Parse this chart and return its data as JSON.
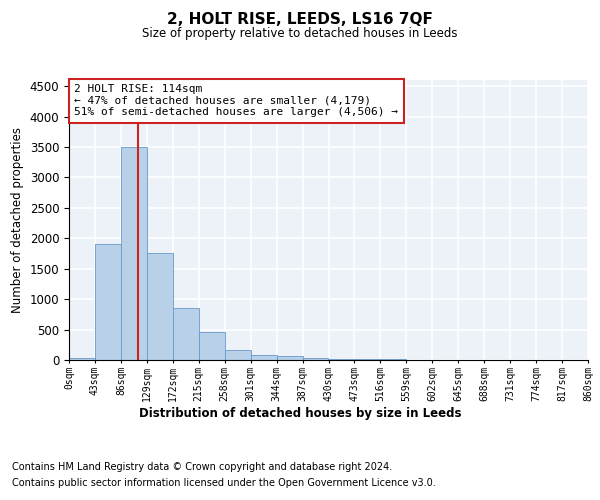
{
  "title": "2, HOLT RISE, LEEDS, LS16 7QF",
  "subtitle": "Size of property relative to detached houses in Leeds",
  "xlabel": "Distribution of detached houses by size in Leeds",
  "ylabel": "Number of detached properties",
  "bar_color": "#b8d0e8",
  "bar_edgecolor": "#6699cc",
  "property_line_x": 114,
  "property_line_color": "#cc2222",
  "annotation_line1": "2 HOLT RISE: 114sqm",
  "annotation_line2": "← 47% of detached houses are smaller (4,179)",
  "annotation_line3": "51% of semi-detached houses are larger (4,506) →",
  "annotation_box_color": "white",
  "annotation_box_edgecolor": "#cc2222",
  "bin_edges": [
    0,
    43,
    86,
    129,
    172,
    215,
    258,
    301,
    344,
    387,
    430,
    473,
    516,
    559,
    602,
    645,
    688,
    731,
    774,
    817,
    860
  ],
  "bar_heights": [
    40,
    1900,
    3500,
    1750,
    850,
    460,
    165,
    90,
    60,
    35,
    20,
    15,
    10,
    8,
    5,
    4,
    3,
    2,
    1,
    1
  ],
  "ylim": [
    0,
    4600
  ],
  "yticks": [
    0,
    500,
    1000,
    1500,
    2000,
    2500,
    3000,
    3500,
    4000,
    4500
  ],
  "footnote1": "Contains HM Land Registry data © Crown copyright and database right 2024.",
  "footnote2": "Contains public sector information licensed under the Open Government Licence v3.0.",
  "background_color": "#edf2f9",
  "grid_color": "white",
  "tick_labels": [
    "0sqm",
    "43sqm",
    "86sqm",
    "129sqm",
    "172sqm",
    "215sqm",
    "258sqm",
    "301sqm",
    "344sqm",
    "387sqm",
    "430sqm",
    "473sqm",
    "516sqm",
    "559sqm",
    "602sqm",
    "645sqm",
    "688sqm",
    "731sqm",
    "774sqm",
    "817sqm",
    "860sqm"
  ]
}
